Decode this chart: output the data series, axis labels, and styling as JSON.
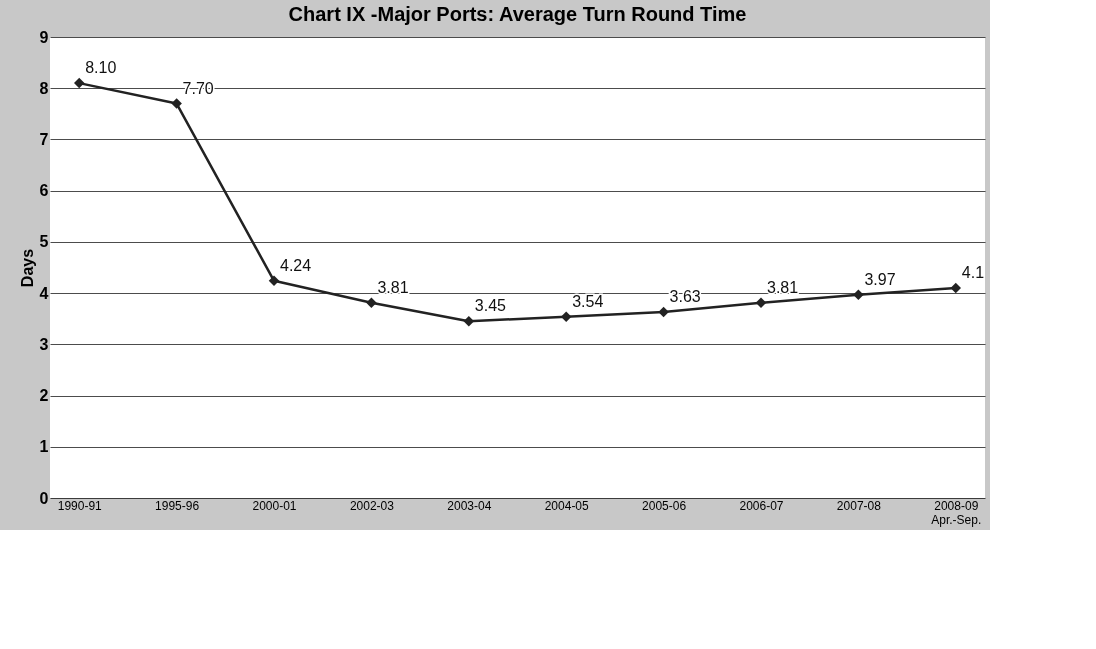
{
  "chart_data": {
    "type": "line",
    "title": "Chart IX -Major Ports: Average Turn Round Time",
    "ylabel": "Days",
    "categories": [
      "1990-91",
      "1995-96",
      "2000-01",
      "2002-03",
      "2003-04",
      "2004-05",
      "2005-06",
      "2006-07",
      "2007-08",
      "2008-09\nApr.-Sep."
    ],
    "series": [
      {
        "color": "#222222",
        "values": [
          8.1,
          7.7,
          4.24,
          3.81,
          3.45,
          3.54,
          3.63,
          3.81,
          3.97,
          4.1
        ],
        "value_labels": [
          "8.10",
          "7.70",
          "4.24",
          "3.81",
          "3.45",
          "3.54",
          "3.63",
          "3.81",
          "3.97",
          "4.1"
        ]
      }
    ],
    "ylim": [
      0,
      9
    ],
    "yticks": [
      0,
      1,
      2,
      3,
      4,
      5,
      6,
      7,
      8,
      9
    ],
    "grid": "y",
    "marker": "diamond",
    "line_style": "solid"
  }
}
